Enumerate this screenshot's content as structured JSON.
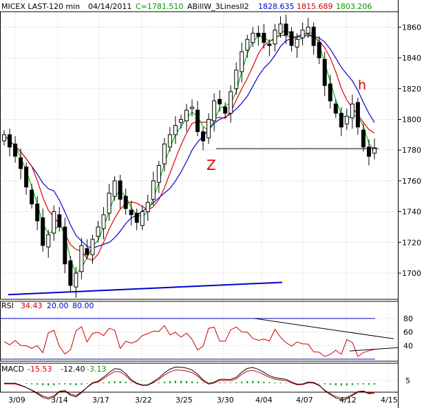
{
  "header": {
    "symbol": "MICEX LAST-120 min",
    "date": "04/14/2011",
    "close_label": "C=1781.510",
    "indicator": "ABillW_3LinesII2",
    "v1": "1828.635",
    "v2": "1815.689",
    "v3": "1803.206"
  },
  "colors": {
    "candle": "#000000",
    "ma_fast": "#00bb00",
    "ma_mid": "#dd0000",
    "ma_slow": "#0000cc",
    "rsi_line": "#cc0000",
    "macd_line": "#000000",
    "signal_line": "#cc0000",
    "histogram": "#009900",
    "annotation": "#dd0000",
    "grid": "#c8c8c8"
  },
  "annotations": {
    "z_label": "Z",
    "h_label": "h"
  },
  "price_panel": {
    "y_ticks": [
      "1860",
      "1840",
      "1820",
      "1800",
      "1780",
      "1760",
      "1740",
      "1720",
      "1700"
    ]
  },
  "rsi_panel": {
    "label": "RSI",
    "value": "34.43",
    "level_low": "20.00",
    "level_high": "80.00",
    "y_ticks": [
      "80",
      "60",
      "40"
    ]
  },
  "macd_panel": {
    "label": "MACD",
    "v1": "-15.53",
    "v2": "-12.40",
    "v3": "-3.13",
    "y_ticks": [
      "5"
    ]
  },
  "x_ticks": [
    "3/09",
    "3/14",
    "3/17",
    "3/22",
    "3/25",
    "3/30",
    "4/04",
    "4/07",
    "4/12",
    "4/15"
  ],
  "chart_data": {
    "type": "candlestick",
    "title": "MICEX LAST-120 min",
    "date": "04/14/2011",
    "price_range": [
      1683,
      1870
    ],
    "close": 1781.51,
    "moving_averages": [
      {
        "name": "",
        "color": "green",
        "last": 1803.206
      },
      {
        "name": "",
        "color": "red",
        "last": 1815.689
      },
      {
        "name": "",
        "color": "blue",
        "last": 1828.635
      }
    ],
    "categories": [
      "3/09",
      "3/14",
      "3/17",
      "3/22",
      "3/25",
      "3/30",
      "4/04",
      "4/07",
      "4/12",
      "4/15"
    ],
    "approx_closes": [
      1790,
      1782,
      1776,
      1768,
      1756,
      1745,
      1734,
      1718,
      1725,
      1740,
      1730,
      1706,
      1692,
      1700,
      1718,
      1712,
      1722,
      1730,
      1738,
      1752,
      1760,
      1748,
      1742,
      1738,
      1733,
      1740,
      1746,
      1760,
      1770,
      1784,
      1790,
      1796,
      1800,
      1806,
      1808,
      1792,
      1786,
      1800,
      1812,
      1810,
      1804,
      1818,
      1832,
      1844,
      1852,
      1856,
      1854,
      1850,
      1848,
      1858,
      1862,
      1855,
      1848,
      1852,
      1858,
      1860,
      1848,
      1840,
      1822,
      1812,
      1804,
      1795,
      1802,
      1810,
      1795,
      1782,
      1776,
      1781.5
    ],
    "horizontal_line": 1781,
    "rsi": {
      "value": 34.43,
      "levels": [
        20,
        80
      ],
      "range": [
        20,
        90
      ]
    },
    "macd": {
      "values": [
        -15.53,
        -12.4,
        -3.13
      ]
    }
  }
}
